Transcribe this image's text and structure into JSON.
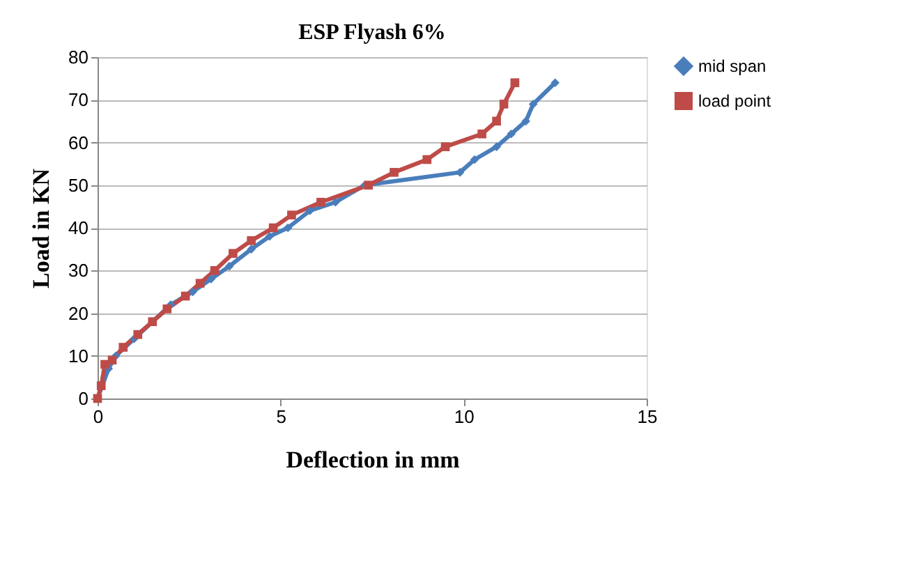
{
  "chart_data": {
    "type": "line",
    "title": "ESP Flyash 6%",
    "xlabel": "Deflection in mm",
    "ylabel": "Load in KN",
    "xlim": [
      0,
      15
    ],
    "xticks": [
      0,
      5,
      10,
      15
    ],
    "ylim": [
      0,
      80
    ],
    "yticks": [
      0,
      10,
      20,
      30,
      40,
      50,
      60,
      70,
      80
    ],
    "grid": "y",
    "legend": "right",
    "line_style": "solid",
    "series": [
      {
        "name": "mid span",
        "color": "#4a7ebb",
        "marker": "diamond",
        "x": [
          0,
          0.3,
          0.5,
          1.0,
          1.5,
          2.0,
          2.6,
          3.1,
          3.6,
          4.2,
          4.7,
          5.2,
          5.8,
          6.5,
          7.3,
          9.9,
          10.3,
          10.9,
          11.3,
          11.7,
          11.9,
          12.5
        ],
        "values": [
          0,
          7,
          10,
          14,
          18,
          22,
          25,
          28,
          31,
          35,
          38,
          40,
          44,
          46,
          50,
          53,
          56,
          59,
          62,
          65,
          69,
          74
        ]
      },
      {
        "name": "load point",
        "color": "#be4b48",
        "marker": "square",
        "x": [
          0,
          0.1,
          0.2,
          0.4,
          0.7,
          1.1,
          1.5,
          1.9,
          2.4,
          2.8,
          3.2,
          3.7,
          4.2,
          4.8,
          5.3,
          6.1,
          7.4,
          8.1,
          9.0,
          9.5,
          10.5,
          10.9,
          11.1,
          11.4
        ],
        "values": [
          0,
          3,
          8,
          9,
          12,
          15,
          18,
          21,
          24,
          27,
          30,
          34,
          37,
          40,
          43,
          46,
          50,
          53,
          56,
          59,
          62,
          65,
          69,
          74
        ]
      }
    ]
  }
}
